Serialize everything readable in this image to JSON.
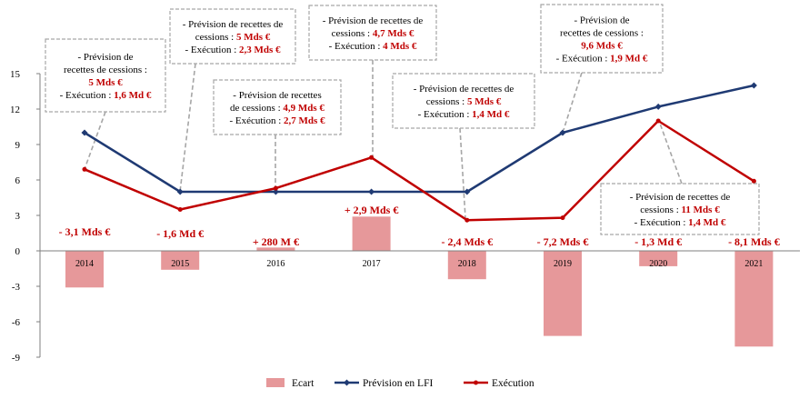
{
  "chart_data": {
    "type": "bar+line",
    "categories": [
      "2014",
      "2015",
      "2016",
      "2017",
      "2018",
      "2019",
      "2020",
      "2021"
    ],
    "y_ticks": [
      "15",
      "12",
      "9",
      "6",
      "3",
      "0",
      "-3",
      "-6",
      "-9"
    ],
    "ylim": [
      -9,
      15
    ],
    "series": [
      {
        "name": "Ecart",
        "type": "bar",
        "color": "#e6989a",
        "values": [
          -3.1,
          -1.6,
          0.28,
          2.9,
          -2.4,
          -7.2,
          -1.3,
          -8.1
        ]
      },
      {
        "name": "Prévision en LFI",
        "type": "line",
        "color": "#1f3a73",
        "values": [
          10,
          5,
          5,
          5,
          5,
          10,
          12.2,
          14
        ]
      },
      {
        "name": "Exécution",
        "type": "line",
        "color": "#c00000",
        "values": [
          6.9,
          3.5,
          5.3,
          7.9,
          2.6,
          2.8,
          11,
          5.9
        ]
      }
    ],
    "bar_labels": [
      "- 3,1 Mds €",
      "- 1,6 Md €",
      "+ 280 M €",
      "+ 2,9 Mds €",
      "- 2,4 Mds €",
      "- 7,2 Mds €",
      "- 1,3 Md €",
      "- 8,1 Mds €"
    ],
    "annotations": [
      {
        "category": "2014",
        "lines": [
          [
            {
              "t": "- Prévision de"
            }
          ],
          [
            {
              "t": "recettes de cessions :"
            }
          ],
          [
            {
              "t": "5 Mds €",
              "b": true
            }
          ],
          [
            {
              "t": "- Exécution : "
            },
            {
              "t": "1,6 Md €",
              "b": true
            }
          ]
        ]
      },
      {
        "category": "2015",
        "lines": [
          [
            {
              "t": "- Prévision de recettes de"
            }
          ],
          [
            {
              "t": "cessions : "
            },
            {
              "t": "5 Mds €",
              "b": true
            }
          ],
          [
            {
              "t": "- Exécution : "
            },
            {
              "t": "2,3 Mds €",
              "b": true
            }
          ]
        ]
      },
      {
        "category": "2016",
        "lines": [
          [
            {
              "t": "- Prévision de recettes"
            }
          ],
          [
            {
              "t": "de cessions : "
            },
            {
              "t": "4,9 Mds €",
              "b": true
            }
          ],
          [
            {
              "t": "- Exécution : "
            },
            {
              "t": "2,7 Mds €",
              "b": true
            }
          ]
        ]
      },
      {
        "category": "2017",
        "lines": [
          [
            {
              "t": "- Prévision de recettes de"
            }
          ],
          [
            {
              "t": "cessions : "
            },
            {
              "t": "4,7 Mds €",
              "b": true
            }
          ],
          [
            {
              "t": "- Exécution : "
            },
            {
              "t": "4 Mds €",
              "b": true
            }
          ]
        ]
      },
      {
        "category": "2018",
        "lines": [
          [
            {
              "t": "- Prévision de recettes de"
            }
          ],
          [
            {
              "t": "cessions : "
            },
            {
              "t": "5 Mds €",
              "b": true
            }
          ],
          [
            {
              "t": "- Exécution : "
            },
            {
              "t": "1,4 Md €",
              "b": true
            }
          ]
        ]
      },
      {
        "category": "2019",
        "lines": [
          [
            {
              "t": "- Prévision de"
            }
          ],
          [
            {
              "t": "recettes de cessions :"
            }
          ],
          [
            {
              "t": "9,6 Mds €",
              "b": true
            }
          ],
          [
            {
              "t": "- Exécution : "
            },
            {
              "t": "1,9 Md €",
              "b": true
            }
          ]
        ]
      },
      {
        "category": "2020",
        "lines": [
          [
            {
              "t": "- Prévision de recettes de"
            }
          ],
          [
            {
              "t": "cessions : "
            },
            {
              "t": "11 Mds €",
              "b": true
            }
          ],
          [
            {
              "t": "- Exécution : "
            },
            {
              "t": "1,4 Md €",
              "b": true
            }
          ]
        ]
      }
    ],
    "legend_position": "bottom",
    "grid": false
  }
}
